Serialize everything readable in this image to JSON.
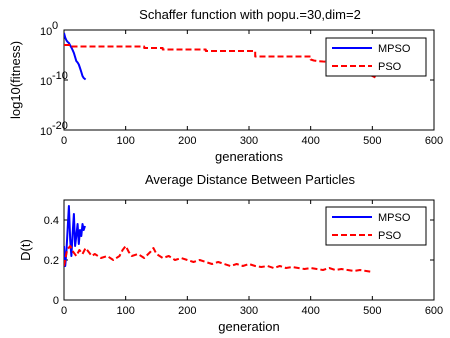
{
  "chart_data": [
    {
      "type": "line",
      "title": "Schaffer function with popu.=30,dim=2",
      "xlabel": "generations",
      "ylabel": "log10(fitness)",
      "y_scale": "log",
      "xlim": [
        0,
        600
      ],
      "ylim_exponent": [
        -20,
        0
      ],
      "x_ticks": [
        0,
        100,
        200,
        300,
        400,
        500,
        600
      ],
      "x_tick_labels": [
        "0",
        "100",
        "200",
        "300",
        "400",
        "500",
        "600"
      ],
      "y_ticks_exponent": [
        0,
        -10,
        -20
      ],
      "y_tick_labels": [
        {
          "base": "10",
          "exp": "0"
        },
        {
          "base": "10",
          "exp": "-10"
        },
        {
          "base": "10",
          "exp": "-20"
        }
      ],
      "legend_placement": "top-right",
      "grid": false,
      "series": [
        {
          "name": "MPSO",
          "color": "#0000ff",
          "style": "solid",
          "x": [
            0,
            2,
            4,
            6,
            8,
            10,
            12,
            14,
            16,
            18,
            20,
            22,
            24,
            26,
            28,
            30,
            32,
            35
          ],
          "y_exponent": [
            -0.6,
            -1.5,
            -2.1,
            -2.4,
            -2.6,
            -3.1,
            -3.5,
            -4.0,
            -4.6,
            -5.4,
            -6.2,
            -6.5,
            -6.9,
            -7.6,
            -8.4,
            -9.2,
            -9.6,
            -9.9
          ]
        },
        {
          "name": "PSO",
          "color": "#ff0000",
          "style": "dashed",
          "x": [
            0,
            10,
            10,
            130,
            130,
            160,
            160,
            230,
            230,
            310,
            310,
            400,
            400,
            405,
            410,
            420,
            430,
            440,
            450,
            460,
            470,
            475,
            480,
            485,
            490,
            495,
            500,
            505
          ],
          "y_exponent": [
            -3.0,
            -3.0,
            -3.3,
            -3.3,
            -3.6,
            -3.6,
            -3.9,
            -3.9,
            -4.2,
            -4.2,
            -5.3,
            -5.3,
            -5.9,
            -6.1,
            -6.2,
            -6.3,
            -6.35,
            -6.4,
            -6.5,
            -6.9,
            -7.2,
            -7.5,
            -7.8,
            -8.1,
            -8.5,
            -8.9,
            -9.2,
            -9.5
          ]
        }
      ]
    },
    {
      "type": "line",
      "title": "Average Distance Between Particles",
      "xlabel": "generation",
      "ylabel": "D(t)",
      "xlim": [
        0,
        600
      ],
      "ylim": [
        0,
        0.5
      ],
      "x_ticks": [
        0,
        100,
        200,
        300,
        400,
        500,
        600
      ],
      "x_tick_labels": [
        "0",
        "100",
        "200",
        "300",
        "400",
        "500",
        "600"
      ],
      "y_ticks": [
        0,
        0.2,
        0.4
      ],
      "y_tick_labels": [
        "0",
        "0.2",
        "0.4"
      ],
      "legend_placement": "top-right",
      "grid": false,
      "series": [
        {
          "name": "MPSO",
          "color": "#0000ff",
          "style": "solid",
          "x": [
            0,
            2,
            4,
            6,
            8,
            10,
            12,
            14,
            16,
            18,
            20,
            22,
            24,
            26,
            28,
            30,
            32,
            34
          ],
          "y": [
            0.27,
            0.17,
            0.25,
            0.36,
            0.47,
            0.3,
            0.22,
            0.33,
            0.43,
            0.27,
            0.32,
            0.38,
            0.28,
            0.35,
            0.32,
            0.38,
            0.35,
            0.37
          ]
        },
        {
          "name": "PSO",
          "color": "#ff0000",
          "style": "dashed",
          "x": [
            0,
            5,
            10,
            15,
            20,
            25,
            30,
            35,
            40,
            45,
            50,
            60,
            70,
            80,
            90,
            95,
            100,
            105,
            110,
            120,
            130,
            140,
            145,
            150,
            160,
            170,
            180,
            190,
            200,
            210,
            220,
            230,
            240,
            250,
            260,
            270,
            280,
            290,
            300,
            310,
            320,
            330,
            340,
            350,
            360,
            370,
            380,
            390,
            400,
            410,
            420,
            430,
            440,
            450,
            460,
            470,
            480,
            490,
            500
          ],
          "y": [
            0.17,
            0.25,
            0.27,
            0.24,
            0.22,
            0.25,
            0.23,
            0.26,
            0.24,
            0.22,
            0.23,
            0.21,
            0.22,
            0.2,
            0.22,
            0.25,
            0.27,
            0.24,
            0.22,
            0.23,
            0.21,
            0.24,
            0.26,
            0.23,
            0.21,
            0.22,
            0.2,
            0.21,
            0.2,
            0.19,
            0.2,
            0.19,
            0.18,
            0.19,
            0.18,
            0.17,
            0.18,
            0.17,
            0.18,
            0.17,
            0.165,
            0.17,
            0.16,
            0.17,
            0.16,
            0.165,
            0.16,
            0.155,
            0.16,
            0.155,
            0.15,
            0.16,
            0.15,
            0.155,
            0.15,
            0.145,
            0.15,
            0.145,
            0.14
          ]
        }
      ]
    }
  ]
}
